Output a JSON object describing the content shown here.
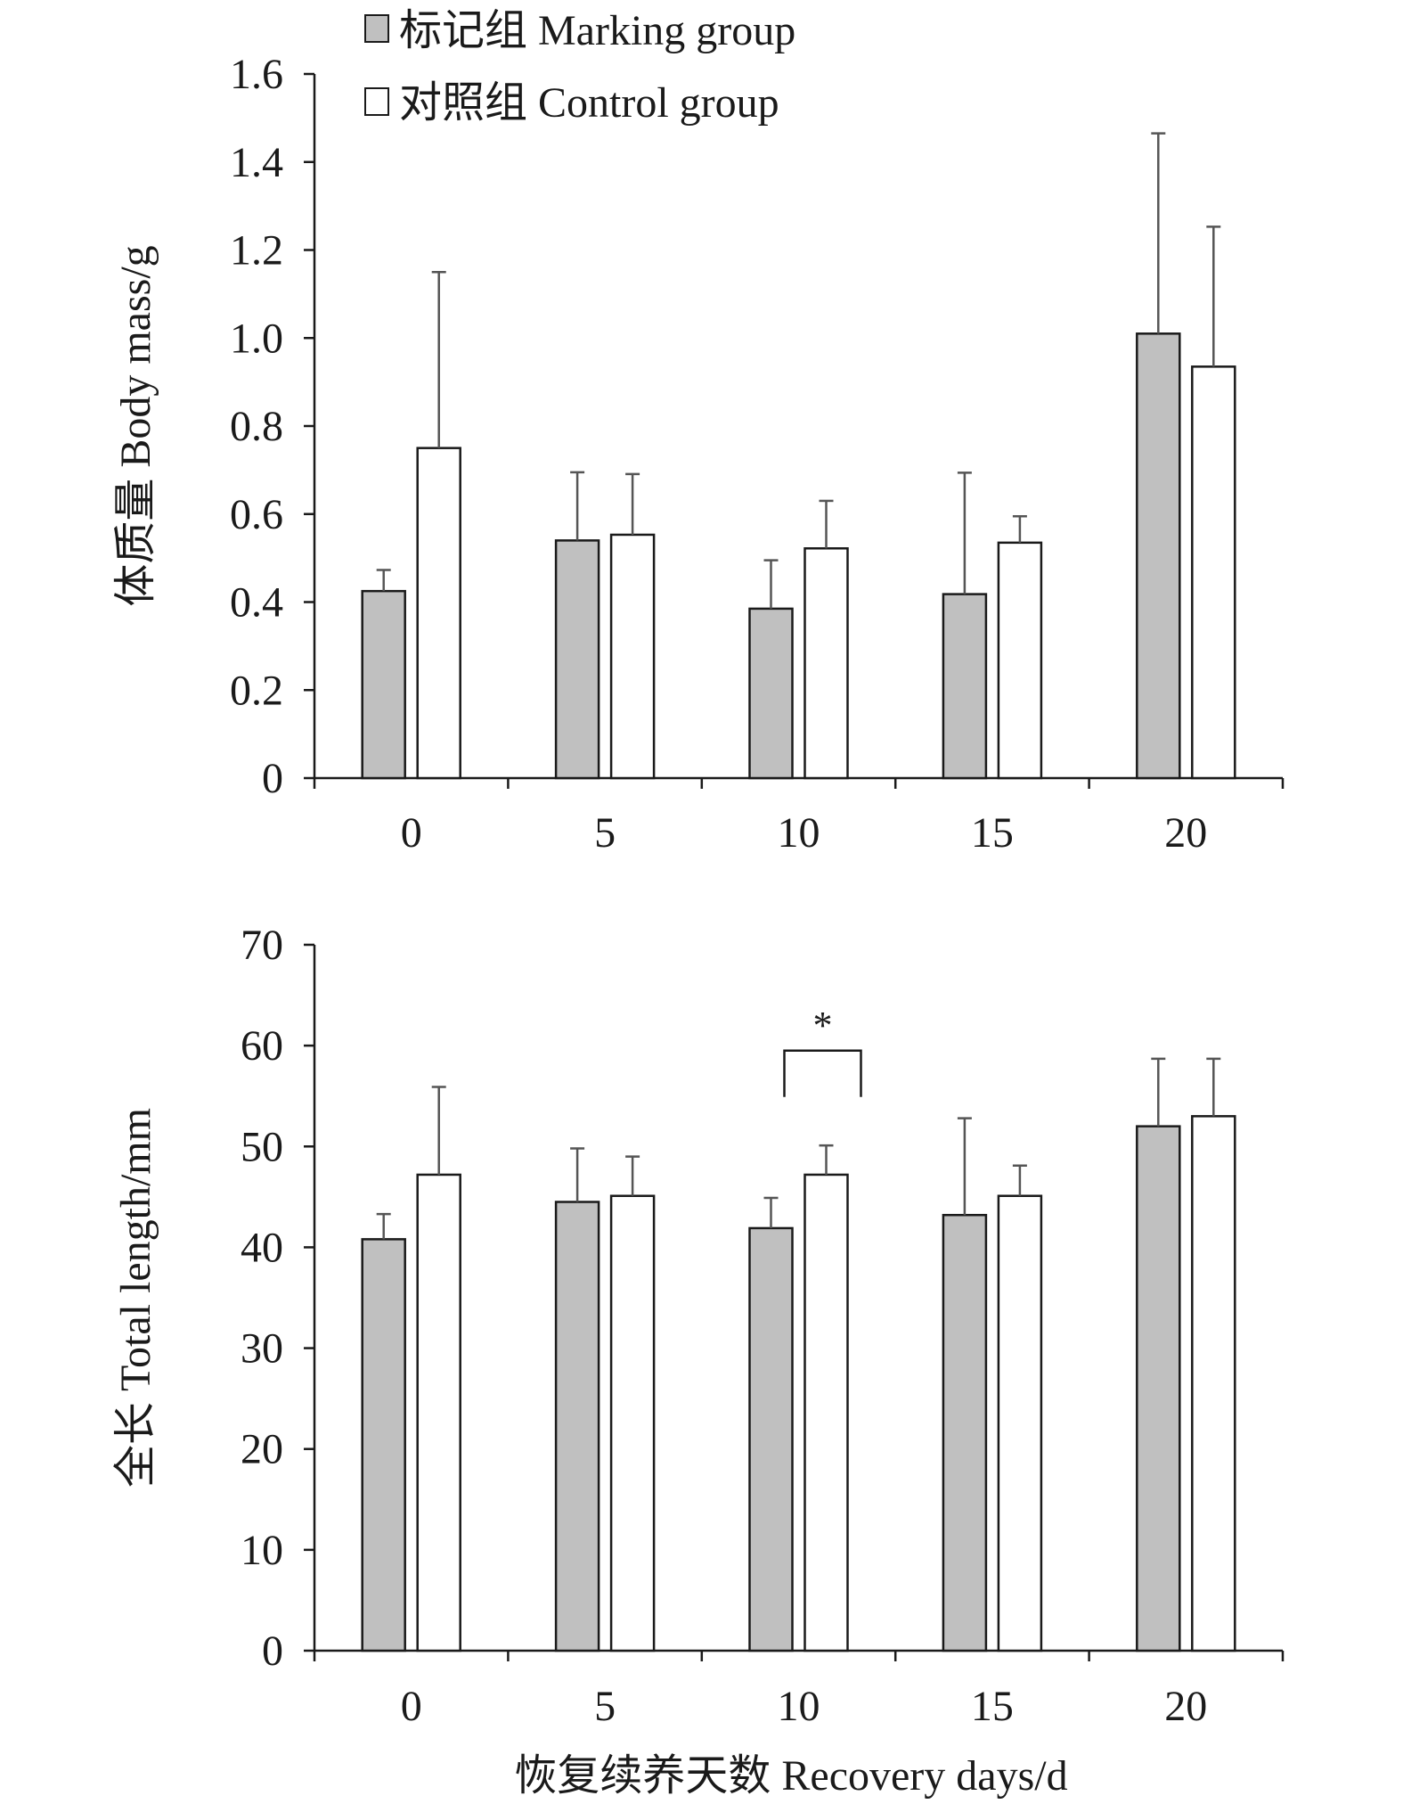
{
  "legend": {
    "marking": "标记组 Marking group",
    "control": "对照组 Control group"
  },
  "xlabel": "恢复续养天数 Recovery days/d",
  "colors": {
    "marking_fill": "#c0c0c0",
    "control_fill": "#ffffff",
    "bar_stroke": "#1a1a1a",
    "error_bar": "#555555",
    "axis": "#1a1a1a"
  },
  "chart_data": [
    {
      "type": "bar",
      "title": "",
      "xlabel": "",
      "ylabel": "体质量 Body mass/g",
      "categories": [
        "0",
        "5",
        "10",
        "15",
        "20"
      ],
      "ylim": [
        0,
        1.6
      ],
      "yticks": [
        "0",
        "0.2",
        "0.4",
        "0.6",
        "0.8",
        "1.0",
        "1.2",
        "1.4",
        "1.6"
      ],
      "series": [
        {
          "name": "标记组 Marking group",
          "values": [
            0.425,
            0.54,
            0.385,
            0.418,
            1.01
          ],
          "errors": [
            0.048,
            0.155,
            0.11,
            0.276,
            0.455
          ]
        },
        {
          "name": "对照组 Control group",
          "values": [
            0.75,
            0.553,
            0.522,
            0.535,
            0.935
          ],
          "errors": [
            0.4,
            0.138,
            0.108,
            0.06,
            0.318
          ]
        }
      ]
    },
    {
      "type": "bar",
      "title": "",
      "xlabel": "恢复续养天数 Recovery days/d",
      "ylabel": "全长 Total length/mm",
      "categories": [
        "0",
        "5",
        "10",
        "15",
        "20"
      ],
      "ylim": [
        0,
        70
      ],
      "yticks": [
        "0",
        "10",
        "20",
        "30",
        "40",
        "50",
        "60",
        "70"
      ],
      "series": [
        {
          "name": "标记组 Marking group",
          "values": [
            40.8,
            44.5,
            41.9,
            43.2,
            52.0
          ],
          "errors": [
            2.5,
            5.3,
            3.0,
            9.6,
            6.7
          ]
        },
        {
          "name": "对照组 Control group",
          "values": [
            47.2,
            45.1,
            47.2,
            45.1,
            53.0
          ],
          "errors": [
            8.7,
            3.9,
            2.9,
            3.0,
            5.7
          ]
        }
      ],
      "annotations": [
        {
          "text": "*",
          "category": "10",
          "y": 59.5,
          "note": "significant difference between groups"
        }
      ]
    }
  ]
}
